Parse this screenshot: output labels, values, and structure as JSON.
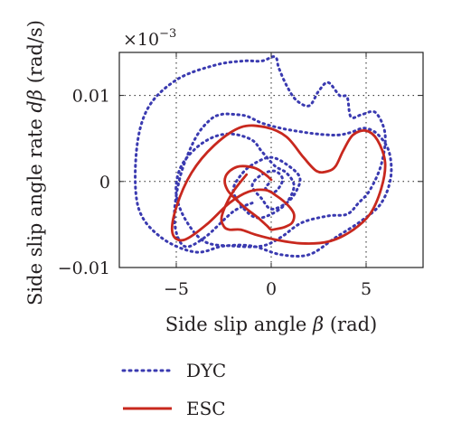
{
  "chart_data": {
    "type": "line",
    "xlabel": "Side slip angle β (rad)",
    "xlabel_main": "Side slip angle ",
    "xlabel_sym": "β",
    "xlabel_unit": " (rad)",
    "ylabel": "Side slip angle rate dβ (rad/s)",
    "ylabel_main": "Side slip angle rate ",
    "ylabel_sym": "dβ",
    "ylabel_unit": " (rad/s)",
    "x_multiplier": "×10−3",
    "x_multiplier_base": "×10",
    "x_multiplier_exp": "−3",
    "xlim": [
      -8,
      8
    ],
    "ylim": [
      -0.01,
      0.015
    ],
    "xticks": [
      -5,
      0,
      5
    ],
    "xtick_labels": [
      "−5",
      "0",
      "5"
    ],
    "yticks": [
      -0.01,
      0,
      0.01
    ],
    "ytick_labels": [
      "−0.01",
      "0",
      "0.01"
    ],
    "grid": true,
    "legend_position": "below plot",
    "series": [
      {
        "name": "DYC",
        "color": "#3a3ab0",
        "style": "dotted",
        "x": [
          -1.0,
          -2.0,
          -3.5,
          -4.6,
          -5.1,
          -4.8,
          -4.0,
          -3.2,
          -2.6,
          -2.0,
          -1.3,
          -0.5,
          0.5,
          1.5,
          2.5,
          3.5,
          4.2,
          4.9,
          5.6,
          6.2,
          6.3,
          5.8,
          4.8,
          3.4,
          2.0,
          0.5,
          -1.0,
          -2.5,
          -4.0,
          -5.8,
          -7.0,
          -7.1,
          -6.5,
          -5.0,
          -3.0,
          -1.5,
          -0.5,
          0.2,
          0.4,
          0.8,
          1.3,
          2.0,
          2.5,
          3.0,
          3.6,
          4.0,
          4.2,
          4.8,
          5.5,
          6.0,
          5.8,
          5.2,
          4.6,
          4.0,
          3.0,
          1.6,
          0.5,
          -0.5,
          -2.0,
          -3.5,
          -4.5,
          -5.0,
          -4.8,
          -4.0,
          -3.0,
          -2.0,
          -1.0,
          -0.5,
          0.2,
          0.8,
          1.2,
          0.8,
          0.0,
          -0.8,
          -1.5,
          -2.0,
          -1.5,
          -0.8,
          0.0,
          0.8,
          1.5,
          1.3,
          0.8,
          0.0,
          -0.5,
          -1.0,
          -0.5,
          0.2,
          0.6,
          0.2,
          -0.3,
          0.0
        ],
        "y": [
          -0.0025,
          -0.0035,
          -0.0065,
          -0.0075,
          -0.0045,
          0.0005,
          0.005,
          0.0072,
          0.0078,
          0.0078,
          0.0076,
          0.0068,
          0.0062,
          0.0058,
          0.0055,
          0.0054,
          0.0057,
          0.0062,
          0.0055,
          0.0035,
          0.0005,
          -0.0025,
          -0.0045,
          -0.0065,
          -0.0085,
          -0.0085,
          -0.0075,
          -0.0075,
          -0.0082,
          -0.0065,
          -0.003,
          0.0035,
          0.0085,
          0.0118,
          0.0135,
          0.014,
          0.014,
          0.0145,
          0.0132,
          0.0112,
          0.0095,
          0.0088,
          0.0105,
          0.0115,
          0.01,
          0.0098,
          0.0075,
          0.0078,
          0.008,
          0.0055,
          0.002,
          -0.001,
          -0.0025,
          -0.0038,
          -0.004,
          -0.0048,
          -0.0065,
          -0.0075,
          -0.0075,
          -0.007,
          -0.0045,
          -0.0015,
          0.0015,
          0.0038,
          0.0052,
          0.0055,
          0.0048,
          0.0035,
          0.0018,
          0.001,
          -0.0005,
          -0.0025,
          -0.0038,
          -0.0042,
          -0.003,
          -0.001,
          0.001,
          0.0022,
          0.0028,
          0.002,
          0.0005,
          -0.0012,
          -0.0025,
          -0.0032,
          -0.002,
          -0.0005,
          0.0008,
          0.0012,
          0.0002,
          -0.0012,
          -0.0008,
          0.0
        ]
      },
      {
        "name": "ESC",
        "color": "#c8281e",
        "style": "solid",
        "x": [
          0.0,
          -0.3,
          -0.9,
          -1.8,
          -2.4,
          -2.3,
          -1.5,
          -0.7,
          -0.2,
          0.0,
          0.3,
          0.7,
          1.1,
          1.2,
          0.9,
          0.3,
          -0.3,
          -1.2,
          -2.2,
          -3.4,
          -4.6,
          -5.2,
          -5.0,
          -4.2,
          -3.0,
          -1.6,
          -0.3,
          0.8,
          1.7,
          2.4,
          3.0,
          3.4,
          3.8,
          4.3,
          5.0,
          5.6,
          6.0,
          5.8,
          5.2,
          4.2,
          3.0,
          1.6,
          0.3,
          -0.8,
          -1.6,
          -2.2,
          -2.5,
          -2.6,
          -2.1,
          -1.3
        ],
        "y": [
          0.0002,
          0.0008,
          0.0016,
          0.0017,
          0.0006,
          -0.001,
          -0.0028,
          -0.0042,
          -0.0052,
          -0.0056,
          -0.0055,
          -0.0053,
          -0.0048,
          -0.0038,
          -0.0028,
          -0.0017,
          -0.001,
          -0.0012,
          -0.0025,
          -0.005,
          -0.0068,
          -0.006,
          -0.003,
          0.001,
          0.0042,
          0.0063,
          0.0063,
          0.0052,
          0.0028,
          0.0012,
          0.0012,
          0.0018,
          0.0036,
          0.0054,
          0.0059,
          0.0048,
          0.0022,
          -0.0008,
          -0.0038,
          -0.0058,
          -0.007,
          -0.0072,
          -0.0068,
          -0.0062,
          -0.0056,
          -0.0056,
          -0.0052,
          -0.004,
          -0.0015,
          0.0008
        ]
      }
    ]
  }
}
